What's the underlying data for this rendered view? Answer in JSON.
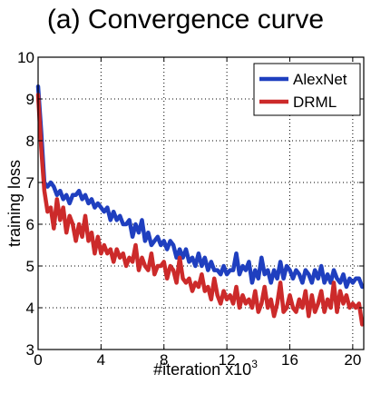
{
  "chart_data": {
    "type": "line",
    "title": "(a) Convergence curve",
    "xlabel_text": "#iteration x10",
    "xlabel_exponent": "3",
    "ylabel": "training loss",
    "xlim": [
      0,
      20.7
    ],
    "ylim": [
      3,
      10
    ],
    "x_ticks": [
      0,
      4,
      8,
      12,
      16,
      20
    ],
    "y_ticks": [
      3,
      4,
      5,
      6,
      7,
      8,
      9,
      10
    ],
    "grid": true,
    "legend_position": "top-right",
    "series": [
      {
        "name": "AlexNet",
        "color": "#1f3fbf",
        "x": [
          0.0,
          0.2,
          0.4,
          0.6,
          0.8,
          1.0,
          1.2,
          1.4,
          1.6,
          1.8,
          2.0,
          2.2,
          2.4,
          2.6,
          2.8,
          3.0,
          3.2,
          3.4,
          3.6,
          3.8,
          4.0,
          4.2,
          4.4,
          4.6,
          4.8,
          5.0,
          5.2,
          5.4,
          5.6,
          5.8,
          6.0,
          6.2,
          6.4,
          6.6,
          6.8,
          7.0,
          7.2,
          7.4,
          7.6,
          7.8,
          8.0,
          8.2,
          8.4,
          8.6,
          8.8,
          9.0,
          9.2,
          9.4,
          9.6,
          9.8,
          10.0,
          10.2,
          10.4,
          10.6,
          10.8,
          11.0,
          11.2,
          11.4,
          11.6,
          11.8,
          12.0,
          12.2,
          12.4,
          12.6,
          12.8,
          13.0,
          13.2,
          13.4,
          13.6,
          13.8,
          14.0,
          14.2,
          14.4,
          14.6,
          14.8,
          15.0,
          15.2,
          15.4,
          15.6,
          15.8,
          16.0,
          16.2,
          16.4,
          16.6,
          16.8,
          17.0,
          17.2,
          17.4,
          17.6,
          17.8,
          18.0,
          18.2,
          18.4,
          18.6,
          18.8,
          19.0,
          19.2,
          19.4,
          19.6,
          19.8,
          20.0,
          20.2,
          20.4,
          20.6
        ],
        "values": [
          9.3,
          8.2,
          7.0,
          6.9,
          7.0,
          6.9,
          6.7,
          6.8,
          6.6,
          6.7,
          6.5,
          6.7,
          6.7,
          6.8,
          6.6,
          6.7,
          6.5,
          6.6,
          6.4,
          6.5,
          6.4,
          6.3,
          6.4,
          6.1,
          6.3,
          6.1,
          6.2,
          6.0,
          6.0,
          6.1,
          5.7,
          6.0,
          5.8,
          6.1,
          5.6,
          5.8,
          5.5,
          5.6,
          5.7,
          5.5,
          5.6,
          5.4,
          5.6,
          5.5,
          5.2,
          5.4,
          5.2,
          5.4,
          5.1,
          5.2,
          5.0,
          5.3,
          5.0,
          5.2,
          4.9,
          5.1,
          4.9,
          4.9,
          4.8,
          5.0,
          4.8,
          4.9,
          4.9,
          5.3,
          4.8,
          5.0,
          4.9,
          5.1,
          4.6,
          4.9,
          4.7,
          5.2,
          4.8,
          4.9,
          4.6,
          4.9,
          4.7,
          5.1,
          4.7,
          5.0,
          4.9,
          4.7,
          4.9,
          4.8,
          4.6,
          4.9,
          4.8,
          4.6,
          4.9,
          4.7,
          5.0,
          4.6,
          4.8,
          4.6,
          4.9,
          4.7,
          4.6,
          4.8,
          4.5,
          4.7,
          4.6,
          4.7,
          4.7,
          4.5
        ]
      },
      {
        "name": "DRML",
        "color": "#cc2a2a",
        "x": [
          0.0,
          0.2,
          0.4,
          0.6,
          0.8,
          1.0,
          1.2,
          1.4,
          1.6,
          1.8,
          2.0,
          2.2,
          2.4,
          2.6,
          2.8,
          3.0,
          3.2,
          3.4,
          3.6,
          3.8,
          4.0,
          4.2,
          4.4,
          4.6,
          4.8,
          5.0,
          5.2,
          5.4,
          5.6,
          5.8,
          6.0,
          6.2,
          6.4,
          6.6,
          6.8,
          7.0,
          7.2,
          7.4,
          7.6,
          7.8,
          8.0,
          8.2,
          8.4,
          8.6,
          8.8,
          9.0,
          9.2,
          9.4,
          9.6,
          9.8,
          10.0,
          10.2,
          10.4,
          10.6,
          10.8,
          11.0,
          11.2,
          11.4,
          11.6,
          11.8,
          12.0,
          12.2,
          12.4,
          12.6,
          12.8,
          13.0,
          13.2,
          13.4,
          13.6,
          13.8,
          14.0,
          14.2,
          14.4,
          14.6,
          14.8,
          15.0,
          15.2,
          15.4,
          15.6,
          15.8,
          16.0,
          16.2,
          16.4,
          16.6,
          16.8,
          17.0,
          17.2,
          17.4,
          17.6,
          17.8,
          18.0,
          18.2,
          18.4,
          18.6,
          18.8,
          19.0,
          19.2,
          19.4,
          19.6,
          19.8,
          20.0,
          20.2,
          20.4,
          20.6
        ],
        "values": [
          9.1,
          7.8,
          6.8,
          6.3,
          6.4,
          5.9,
          6.6,
          6.1,
          6.4,
          5.8,
          6.2,
          6.0,
          5.6,
          6.0,
          5.7,
          6.2,
          5.6,
          5.8,
          5.3,
          5.7,
          5.3,
          5.5,
          5.3,
          5.4,
          5.1,
          5.4,
          5.2,
          5.3,
          5.0,
          5.2,
          5.1,
          5.5,
          4.9,
          5.2,
          5.0,
          4.9,
          5.3,
          4.8,
          5.0,
          5.0,
          5.1,
          4.7,
          5.0,
          4.9,
          4.6,
          5.2,
          4.7,
          4.6,
          4.7,
          4.4,
          4.6,
          4.5,
          4.8,
          4.4,
          4.5,
          4.2,
          4.7,
          4.3,
          4.1,
          4.4,
          4.2,
          4.3,
          4.1,
          4.5,
          4.0,
          4.3,
          4.1,
          4.2,
          4.0,
          4.4,
          3.9,
          4.1,
          4.5,
          4.0,
          4.2,
          3.8,
          4.1,
          4.6,
          3.9,
          4.0,
          4.3,
          4.0,
          3.9,
          4.2,
          4.0,
          4.4,
          3.8,
          4.3,
          3.9,
          4.1,
          4.4,
          3.9,
          4.2,
          4.0,
          4.6,
          3.9,
          4.4,
          4.1,
          4.3,
          4.0,
          4.1,
          4.0,
          4.1,
          3.6
        ]
      }
    ]
  }
}
